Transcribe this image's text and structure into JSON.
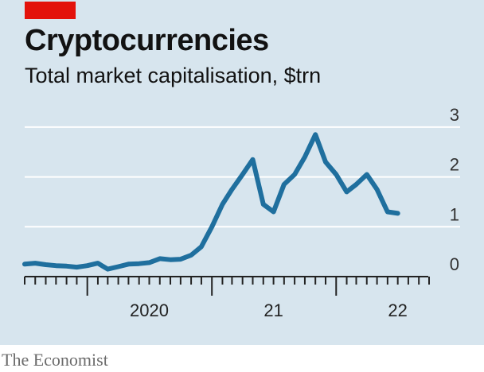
{
  "header": {
    "title": "Cryptocurrencies",
    "subtitle": "Total market capitalisation, $trn"
  },
  "footer": {
    "source": "The Economist"
  },
  "colors": {
    "accent": "#e3120b",
    "line": "#1f6f9e",
    "background": "#d7e5ee",
    "grid": "#ffffff"
  },
  "chart_data": {
    "type": "line",
    "title": "Cryptocurrencies",
    "subtitle": "Total market capitalisation, $trn",
    "xlabel": "",
    "ylabel": "",
    "ylim": [
      0,
      3
    ],
    "yticks": [
      0,
      1,
      2,
      3
    ],
    "xticklabels": [
      {
        "label": "2020",
        "date": "2020-07-01"
      },
      {
        "label": "21",
        "date": "2021-07-01"
      },
      {
        "label": "22",
        "date": "2022-07-01"
      }
    ],
    "xrange": [
      "2019-07-01",
      "2022-10-15"
    ],
    "grid": true,
    "series": [
      {
        "values": [
          [
            "2019-07-01",
            0.25
          ],
          [
            "2019-08-01",
            0.27
          ],
          [
            "2019-09-01",
            0.24
          ],
          [
            "2019-10-01",
            0.22
          ],
          [
            "2019-11-01",
            0.21
          ],
          [
            "2019-12-01",
            0.19
          ],
          [
            "2020-01-01",
            0.22
          ],
          [
            "2020-02-01",
            0.27
          ],
          [
            "2020-03-01",
            0.15
          ],
          [
            "2020-04-01",
            0.2
          ],
          [
            "2020-05-01",
            0.25
          ],
          [
            "2020-06-01",
            0.26
          ],
          [
            "2020-07-01",
            0.28
          ],
          [
            "2020-08-01",
            0.36
          ],
          [
            "2020-09-01",
            0.34
          ],
          [
            "2020-10-01",
            0.35
          ],
          [
            "2020-11-01",
            0.43
          ],
          [
            "2020-12-01",
            0.6
          ],
          [
            "2021-01-01",
            1.0
          ],
          [
            "2021-02-01",
            1.45
          ],
          [
            "2021-03-01",
            1.75
          ],
          [
            "2021-04-01",
            2.05
          ],
          [
            "2021-05-01",
            2.35
          ],
          [
            "2021-06-01",
            1.45
          ],
          [
            "2021-07-01",
            1.3
          ],
          [
            "2021-08-01",
            1.85
          ],
          [
            "2021-09-01",
            2.05
          ],
          [
            "2021-10-01",
            2.4
          ],
          [
            "2021-11-01",
            2.85
          ],
          [
            "2021-12-01",
            2.3
          ],
          [
            "2022-01-01",
            2.05
          ],
          [
            "2022-02-01",
            1.7
          ],
          [
            "2022-03-01",
            1.85
          ],
          [
            "2022-04-01",
            2.05
          ],
          [
            "2022-05-01",
            1.75
          ],
          [
            "2022-06-01",
            1.3
          ],
          [
            "2022-07-01",
            1.27
          ]
        ]
      }
    ]
  }
}
